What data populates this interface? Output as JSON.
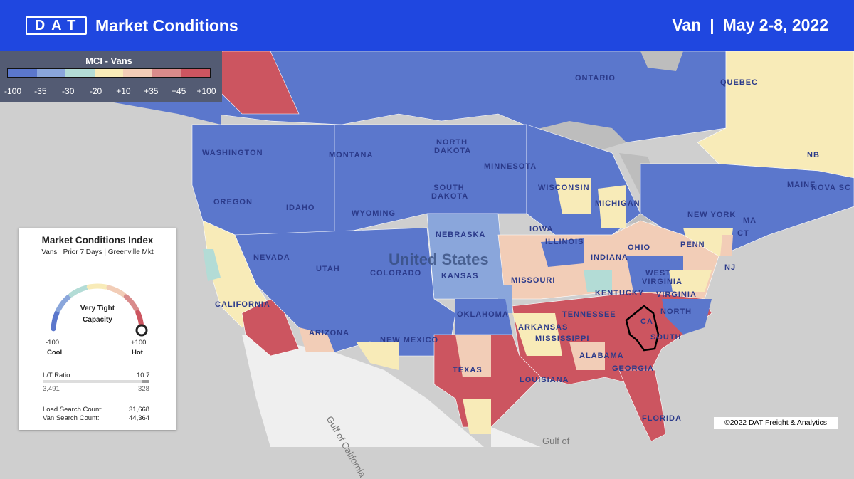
{
  "header": {
    "logo_text": "DAT",
    "title": "Market Conditions",
    "equipment": "Van",
    "separator": "|",
    "date_range": "May 2-8, 2022"
  },
  "legend": {
    "title": "MCI - Vans",
    "ticks": [
      "-100",
      "-35",
      "-30",
      "-20",
      "+10",
      "+35",
      "+45",
      "+100"
    ],
    "colors": [
      "#5b77cc",
      "#8aa6db",
      "#b3dcd6",
      "#f8ebb8",
      "#f2cdb7",
      "#d98b8b",
      "#cc5560"
    ]
  },
  "card": {
    "title": "Market Conditions Index",
    "subtitle": "Vans | Prior 7 Days | Greenville Mkt",
    "gauge_label_line1": "Very Tight",
    "gauge_label_line2": "Capacity",
    "gauge_value": 100,
    "min_value": "-100",
    "min_label": "Cool",
    "max_value": "+100",
    "max_label": "Hot",
    "lt_ratio_label": "L/T Ratio",
    "lt_ratio_value": "10.7",
    "loads": "3,491",
    "trucks": "328",
    "load_search_label": "Load Search Count:",
    "load_search_value": "31,668",
    "van_search_label": "Van Search Count:",
    "van_search_value": "44,364"
  },
  "map": {
    "country_label": "United States",
    "water_labels": [
      "Gulf of California",
      "Gulf of"
    ],
    "state_labels": [
      "ONTARIO",
      "QUEBEC",
      "NB",
      "NOVA SC",
      "WASHINGTON",
      "MONTANA",
      "NORTH DAKOTA",
      "MINNESOTA",
      "OREGON",
      "IDAHO",
      "SOUTH DAKOTA",
      "WISCONSIN",
      "MICHIGAN",
      "MAINE",
      "WYOMING",
      "NEBRASKA",
      "IOWA",
      "NEW YORK",
      "MA",
      "CT",
      "NEVADA",
      "UTAH",
      "COLORADO",
      "KANSAS",
      "ILLINOIS",
      "INDIANA",
      "OHIO",
      "PENN",
      "NJ",
      "MISSOURI",
      "WEST VIRGINIA",
      "VIRGINIA",
      "CALIFORNIA",
      "KENTUCKY",
      "NORTH",
      "OKLAHOMA",
      "TENNESSEE",
      "CA",
      "ARIZONA",
      "NEW MEXICO",
      "ARKANSAS",
      "SOUTH",
      "MISSISSIPPI",
      "ALABAMA",
      "GEORGIA",
      "TEXAS",
      "LOUISIANA",
      "FLORIDA"
    ],
    "highlighted_market": "Greenville",
    "regions": [
      {
        "name": "bc-coast",
        "mci": 50
      },
      {
        "name": "pacific-northwest",
        "mci": -50
      },
      {
        "name": "northern-plains",
        "mci": -50
      },
      {
        "name": "canada-central",
        "mci": -45
      },
      {
        "name": "quebec-east",
        "mci": -15
      },
      {
        "name": "great-lakes-interior",
        "mci": -40
      },
      {
        "name": "northeast",
        "mci": -45
      },
      {
        "name": "central-plains",
        "mci": -32
      },
      {
        "name": "southwest",
        "mci": -50
      },
      {
        "name": "california-north",
        "mci": -10
      },
      {
        "name": "california-south",
        "mci": 50
      },
      {
        "name": "midwest-mixed",
        "mci": 15
      },
      {
        "name": "southeast",
        "mci": 55
      },
      {
        "name": "texas",
        "mci": 55
      },
      {
        "name": "florida",
        "mci": 55
      }
    ]
  },
  "copyright": "©2022 DAT Freight & Analytics"
}
